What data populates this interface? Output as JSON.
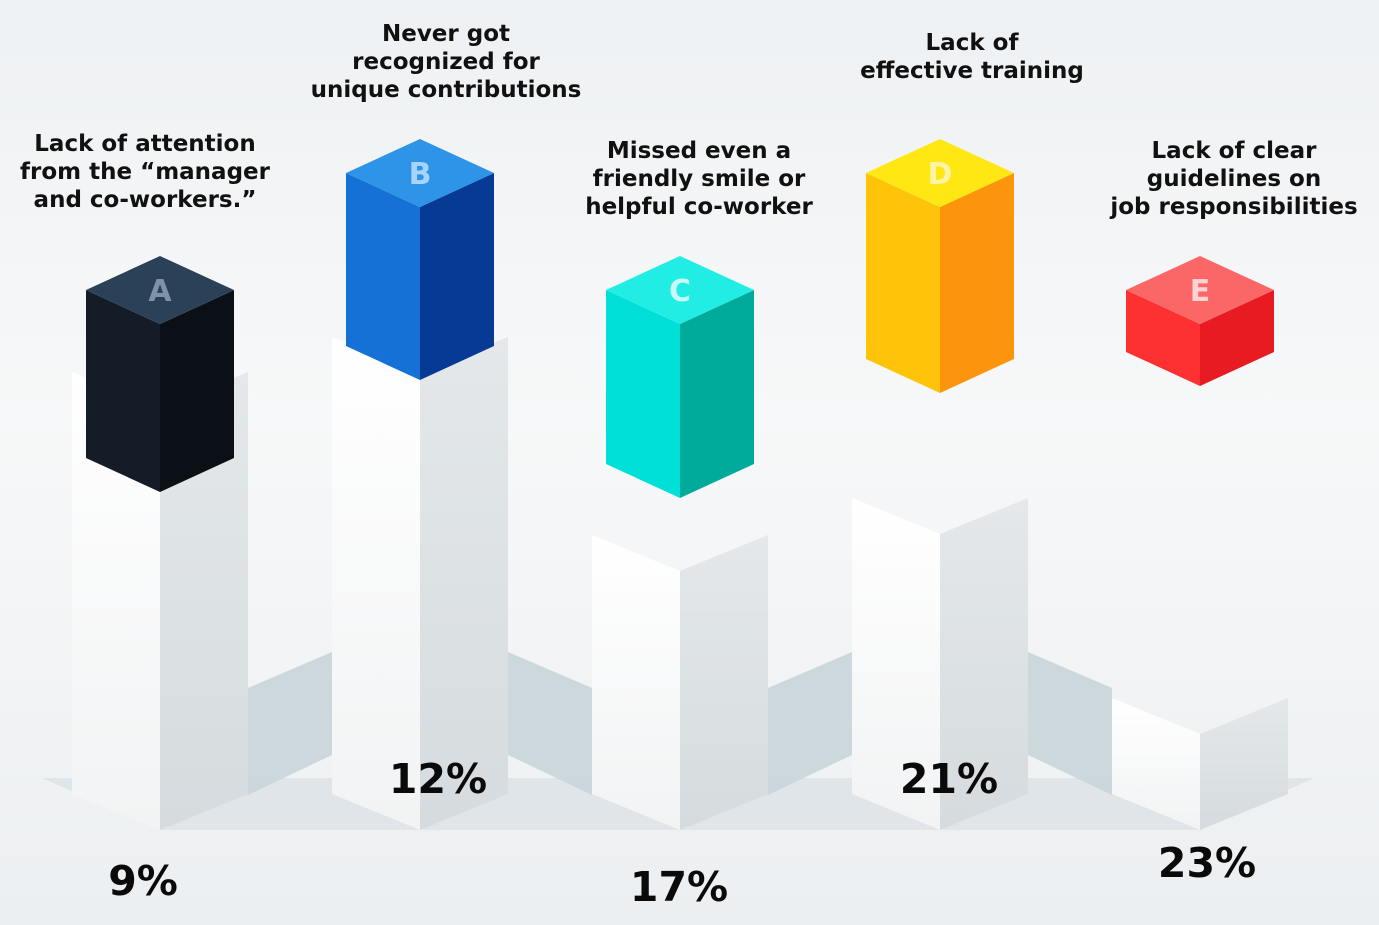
{
  "chart_data": {
    "type": "bar",
    "title": "",
    "xlabel": "",
    "ylabel": "",
    "categories": [
      {
        "letter": "A",
        "caption": [
          "Lack of attention",
          "from the “manager",
          "and co-workers.”"
        ],
        "value": 9,
        "value_label": "9%",
        "colors": {
          "top": "#2b4158",
          "left": "#131c27",
          "right": "#0b0f16",
          "letter": "#7f93a8"
        }
      },
      {
        "letter": "B",
        "caption": [
          "Never got",
          "recognized for",
          "unique contributions"
        ],
        "value": 12,
        "value_label": "12%",
        "colors": {
          "top": "#2e94e8",
          "left": "#1571d6",
          "right": "#063a94",
          "letter": "#a7d4fb"
        }
      },
      {
        "letter": "C",
        "caption": [
          "Missed even a",
          "friendly smile or",
          "helpful co-worker"
        ],
        "value": 17,
        "value_label": "17%",
        "colors": {
          "top": "#22ede4",
          "left": "#00e0d8",
          "right": "#00ab9c",
          "letter": "#c8fbf7"
        }
      },
      {
        "letter": "D",
        "caption": [
          "Lack of",
          "effective training"
        ],
        "value": 21,
        "value_label": "21%",
        "colors": {
          "top": "#ffe714",
          "left": "#ffc40a",
          "right": "#fc950b",
          "letter": "#fff3a6"
        }
      },
      {
        "letter": "E",
        "caption": [
          "Lack of clear",
          "guidelines on",
          "job responsibilities"
        ],
        "value": 23,
        "value_label": "23%",
        "colors": {
          "top": "#fb6666",
          "left": "#fd3131",
          "right": "#e81a22",
          "letter": "#ffd3d3"
        }
      }
    ],
    "values": [
      9,
      12,
      17,
      21,
      23
    ],
    "ylim": [
      0,
      30
    ],
    "legend": "none",
    "grid": false
  }
}
